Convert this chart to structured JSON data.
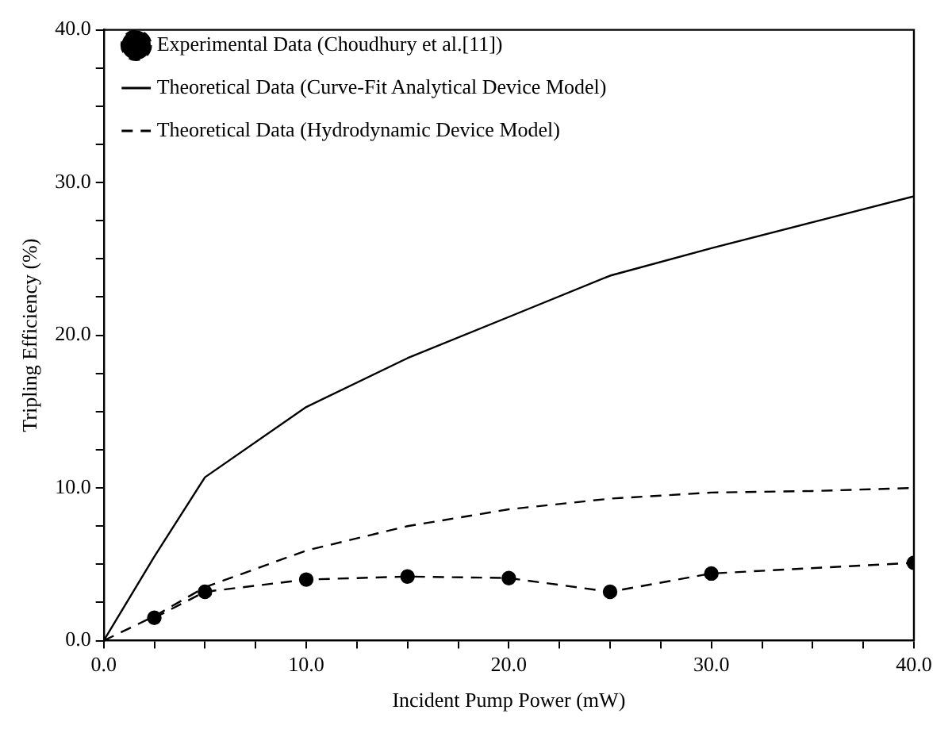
{
  "chart_data": {
    "type": "line",
    "xlabel": "Incident Pump Power (mW)",
    "ylabel": "Tripling Efficiency (%)",
    "xlim": [
      0,
      40
    ],
    "ylim": [
      0,
      40
    ],
    "xticks": [
      {
        "value": 0,
        "label": "0.0"
      },
      {
        "value": 2.5,
        "label": null
      },
      {
        "value": 5,
        "label": null
      },
      {
        "value": 7.5,
        "label": null
      },
      {
        "value": 10,
        "label": "10.0"
      },
      {
        "value": 12.5,
        "label": null
      },
      {
        "value": 15,
        "label": null
      },
      {
        "value": 17.5,
        "label": null
      },
      {
        "value": 20,
        "label": "20.0"
      },
      {
        "value": 22.5,
        "label": null
      },
      {
        "value": 25,
        "label": null
      },
      {
        "value": 27.5,
        "label": null
      },
      {
        "value": 30,
        "label": "30.0"
      },
      {
        "value": 32.5,
        "label": null
      },
      {
        "value": 35,
        "label": null
      },
      {
        "value": 37.5,
        "label": null
      },
      {
        "value": 40,
        "label": "40.0"
      }
    ],
    "yticks": [
      {
        "value": 0,
        "label": "0.0"
      },
      {
        "value": 2.5,
        "label": null
      },
      {
        "value": 5,
        "label": null
      },
      {
        "value": 7.5,
        "label": null
      },
      {
        "value": 10,
        "label": "10.0"
      },
      {
        "value": 12.5,
        "label": null
      },
      {
        "value": 15,
        "label": null
      },
      {
        "value": 17.5,
        "label": null
      },
      {
        "value": 20,
        "label": "20.0"
      },
      {
        "value": 22.5,
        "label": null
      },
      {
        "value": 25,
        "label": null
      },
      {
        "value": 27.5,
        "label": null
      },
      {
        "value": 30,
        "label": "30.0"
      },
      {
        "value": 32.5,
        "label": null
      },
      {
        "value": 35,
        "label": null
      },
      {
        "value": 37.5,
        "label": null
      },
      {
        "value": 40,
        "label": "40.0"
      }
    ],
    "grid": false,
    "legend": "top left",
    "series": [
      {
        "name": "Experimental Data (Choudhury et al.[11])",
        "color": "#000000",
        "marker": "circle",
        "line_style": "dashed",
        "x": [
          2.5,
          5,
          10,
          15,
          20,
          25,
          30,
          40
        ],
        "values": [
          1.5,
          3.2,
          4.0,
          4.2,
          4.1,
          3.2,
          4.4,
          5.1
        ]
      },
      {
        "name": "Theoretical Data (Curve-Fit Analytical Device Model)",
        "color": "#000000",
        "marker": "none",
        "line_style": "solid",
        "x": [
          0,
          2.5,
          5,
          10,
          15,
          20,
          25,
          30,
          35,
          40
        ],
        "values": [
          0,
          5.5,
          10.7,
          15.3,
          18.5,
          21.2,
          23.9,
          25.7,
          27.4,
          29.1
        ]
      },
      {
        "name": "Theoretical Data (Hydrodynamic Device Model)",
        "color": "#000000",
        "marker": "none",
        "line_style": "dashed",
        "x": [
          0,
          2.5,
          5,
          10,
          15,
          20,
          25,
          30,
          35,
          40
        ],
        "values": [
          0,
          1.6,
          3.5,
          5.9,
          7.5,
          8.6,
          9.3,
          9.7,
          9.8,
          10.0
        ]
      }
    ]
  }
}
